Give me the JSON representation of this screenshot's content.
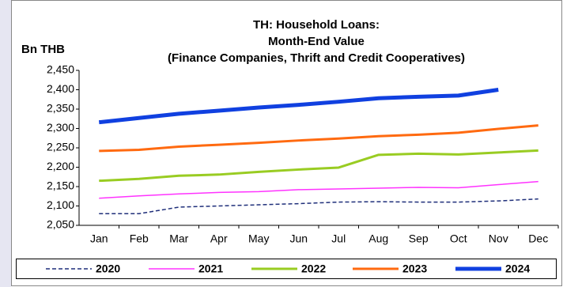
{
  "chart_data": {
    "type": "line",
    "title": [
      "TH: Household Loans:",
      "Month-End Value",
      "(Finance Companies, Thrift and Credit Cooperatives)"
    ],
    "y_label": "Bn THB",
    "categories": [
      "Jan",
      "Feb",
      "Mar",
      "Apr",
      "May",
      "Jun",
      "Jul",
      "Aug",
      "Sep",
      "Oct",
      "Nov",
      "Dec"
    ],
    "series": [
      {
        "name": "2020",
        "color": "#1f2f7a",
        "width": 1.5,
        "dashed": true,
        "values": [
          2080,
          2080,
          2097,
          2100,
          2103,
          2106,
          2110,
          2111,
          2110,
          2110,
          2113,
          2118
        ]
      },
      {
        "name": "2021",
        "color": "#ff33ff",
        "width": 1.5,
        "dashed": false,
        "values": [
          2120,
          2126,
          2131,
          2135,
          2137,
          2142,
          2144,
          2146,
          2148,
          2147,
          2155,
          2163
        ]
      },
      {
        "name": "2022",
        "color": "#99cc22",
        "width": 3,
        "dashed": false,
        "values": [
          2165,
          2170,
          2178,
          2181,
          2188,
          2194,
          2199,
          2232,
          2235,
          2233,
          2238,
          2243
        ]
      },
      {
        "name": "2023",
        "color": "#ff6a10",
        "width": 3,
        "dashed": false,
        "values": [
          2242,
          2245,
          2253,
          2258,
          2263,
          2269,
          2274,
          2280,
          2284,
          2289,
          2299,
          2308
        ]
      },
      {
        "name": "2024",
        "color": "#1040e0",
        "width": 5,
        "dashed": false,
        "values": [
          2316,
          2327,
          2338,
          2346,
          2354,
          2361,
          2369,
          2378,
          2382,
          2385,
          2400,
          null
        ]
      }
    ],
    "ylim": [
      2050,
      2450
    ],
    "yticks": [
      {
        "value": 2050,
        "label": "2,050"
      },
      {
        "value": 2100,
        "label": "2,100"
      },
      {
        "value": 2150,
        "label": "2,150"
      },
      {
        "value": 2200,
        "label": "2,200"
      },
      {
        "value": 2250,
        "label": "2,250"
      },
      {
        "value": 2300,
        "label": "2,300"
      },
      {
        "value": 2350,
        "label": "2,350"
      },
      {
        "value": 2400,
        "label": "2,400"
      },
      {
        "value": 2450,
        "label": "2,450"
      }
    ],
    "grid": false,
    "legend": "bottom"
  }
}
